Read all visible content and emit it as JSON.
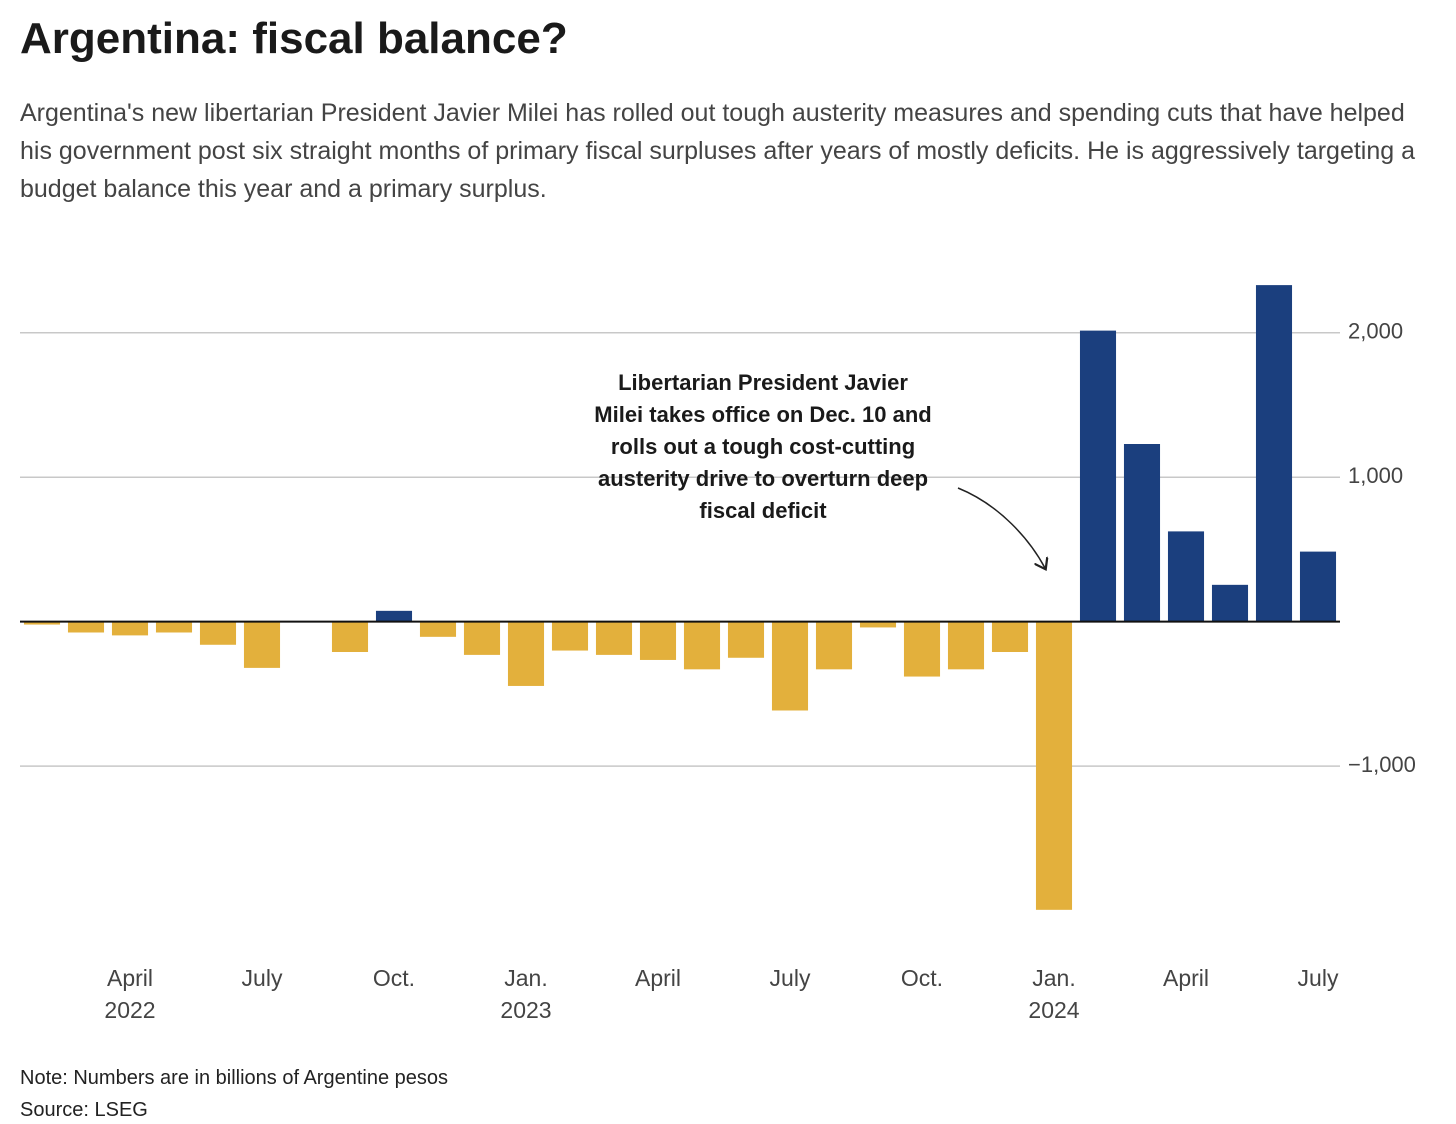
{
  "chart_data": {
    "type": "bar",
    "title": "Argentina: fiscal balance?",
    "subtitle": "Argentina's new libertarian President Javier Milei has rolled out tough austerity measures and spending cuts that have helped his government post six straight months of primary fiscal surpluses after years of mostly deficits. He is aggressively targeting a budget balance this year and a primary surplus.",
    "categories": [
      null,
      null,
      "April 2022",
      null,
      null,
      "July",
      null,
      null,
      "Oct.",
      null,
      null,
      "Jan. 2023",
      null,
      null,
      "April",
      null,
      null,
      "July",
      null,
      null,
      "Oct.",
      null,
      null,
      "Jan. 2024",
      null,
      null,
      "April",
      null,
      null,
      "July"
    ],
    "values": [
      -20,
      -75,
      -95,
      -75,
      -160,
      -320,
      null,
      -210,
      75,
      -105,
      -230,
      -445,
      -200,
      -230,
      -265,
      -330,
      -250,
      -615,
      -330,
      -40,
      -380,
      -330,
      -210,
      -1995,
      2015,
      1230,
      625,
      255,
      2330,
      485
    ],
    "positive_color": "#1b3f7e",
    "negative_color": "#e3b03c",
    "ylim": [
      -2100,
      2400
    ],
    "yticks": [
      {
        "value": -1000,
        "label": "−1,000"
      },
      {
        "value": 1000,
        "label": "1,000"
      },
      {
        "value": 2000,
        "label": "2,000"
      }
    ],
    "grid": true,
    "annotation": [
      "Libertarian President Javier",
      "Milei takes office on Dec. 10 and",
      "rolls out a tough cost-cutting",
      "austerity drive to overturn deep",
      "fiscal deficit"
    ],
    "note": "Note: Numbers are in billions of Argentine pesos",
    "source": "Source: LSEG"
  }
}
